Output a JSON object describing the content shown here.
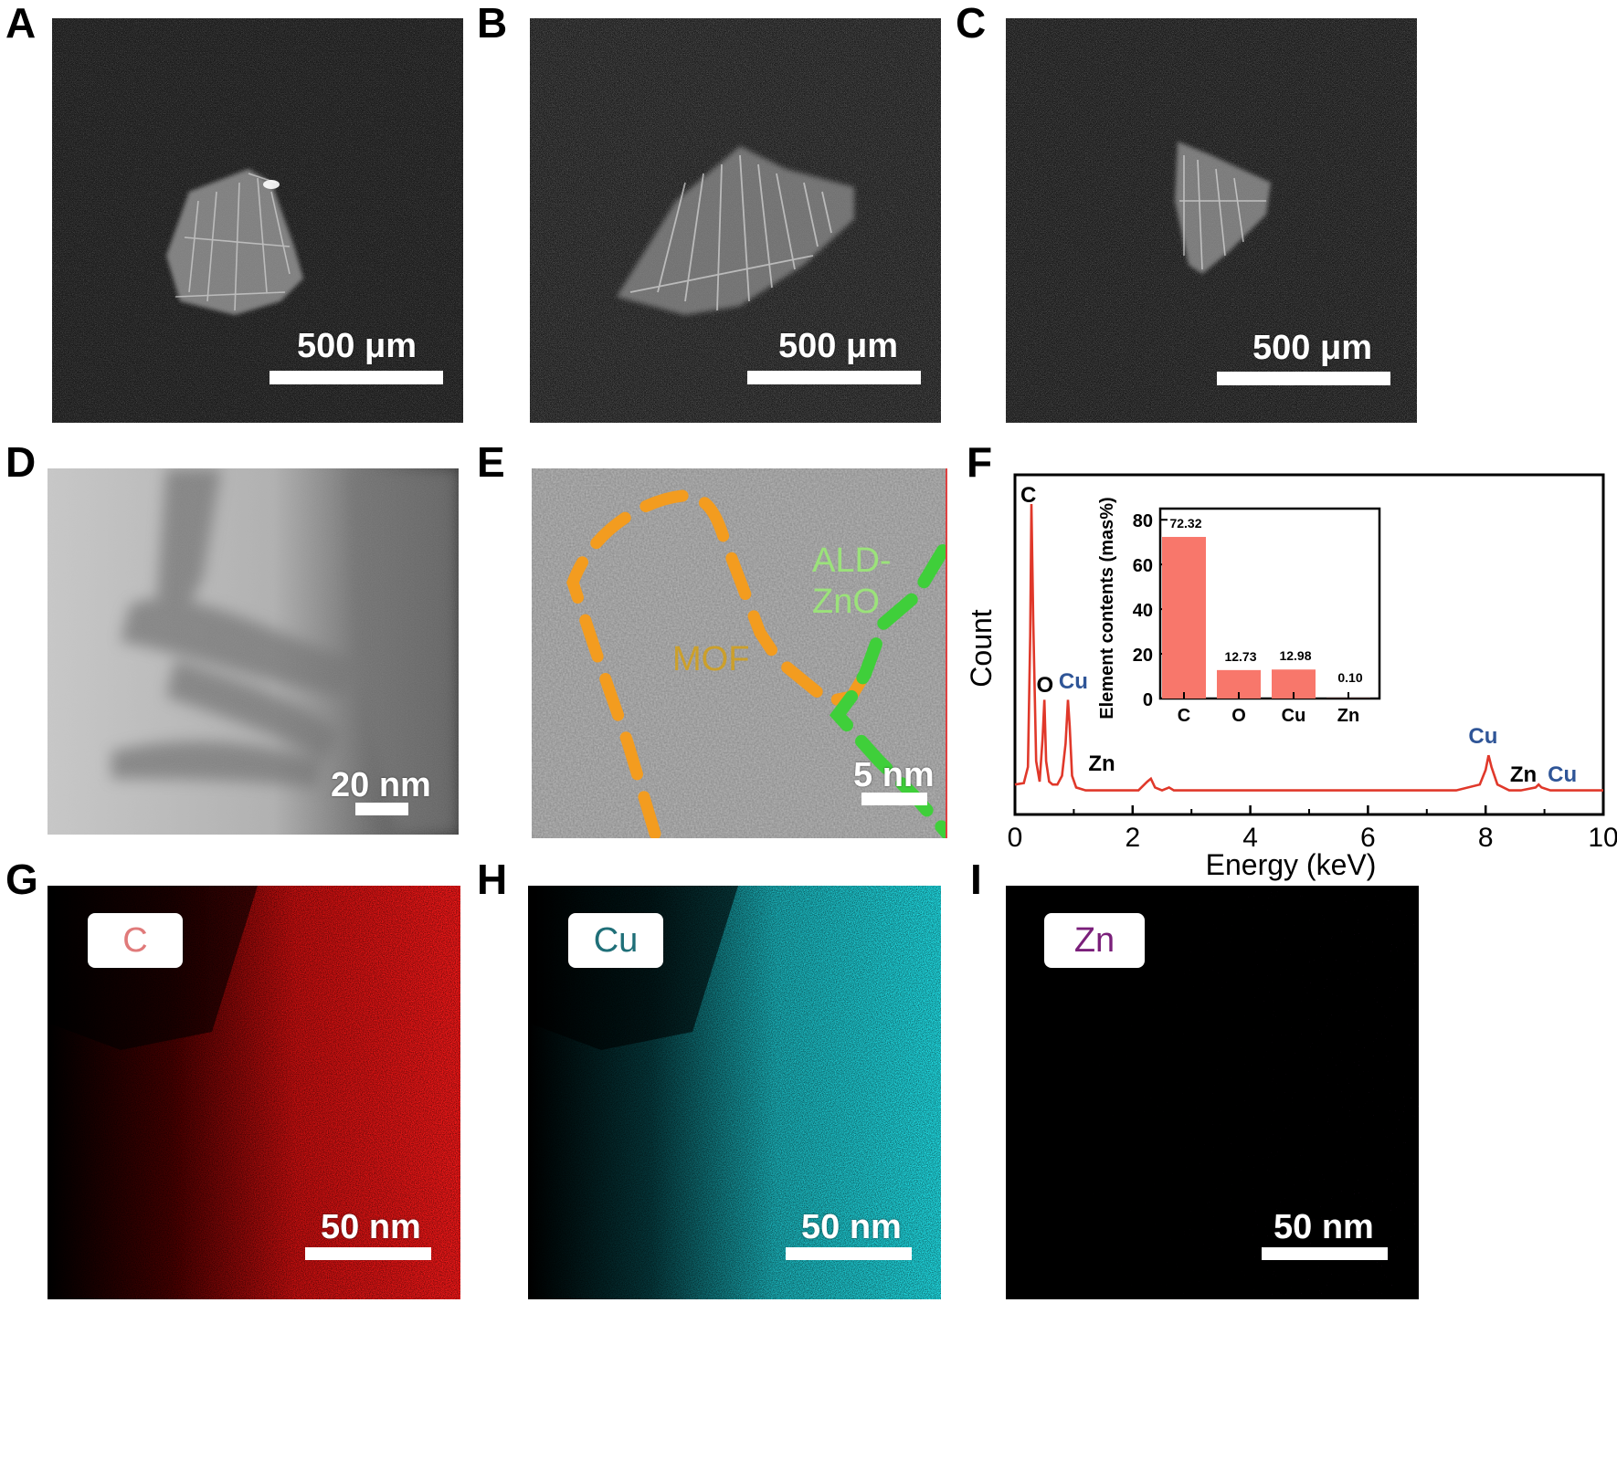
{
  "panel_letters": [
    "A",
    "B",
    "C",
    "D",
    "E",
    "F",
    "G",
    "H",
    "I"
  ],
  "panels": {
    "A": {
      "scale_label": "500 μm"
    },
    "B": {
      "scale_label": "500 μm"
    },
    "C": {
      "scale_label": "500 μm"
    },
    "D": {
      "scale_label": "20 nm"
    },
    "E": {
      "scale_label": "5 nm",
      "region_labels": {
        "mof": "MOF",
        "ald_line1": "ALD-",
        "ald_line2": "ZnO"
      },
      "colors": {
        "mof": "#f39c1f",
        "ald": "#3fcf3a"
      }
    },
    "G": {
      "element": "C",
      "scale_label": "50 nm",
      "color": "#ff1a1a",
      "text_color": "#e07a7a"
    },
    "H": {
      "element": "Cu",
      "scale_label": "50 nm",
      "color": "#22e0e8",
      "text_color": "#1f6f78"
    },
    "I": {
      "element": "Zn",
      "scale_label": "50 nm",
      "color": "#e020e0",
      "text_color": "#7a1f7a"
    }
  },
  "chart_data": [
    {
      "type": "line",
      "panel": "F",
      "xlabel": "Energy (keV)",
      "ylabel": "Count",
      "xlim": [
        0,
        10
      ],
      "xticks": [
        "0",
        "2",
        "4",
        "6",
        "8",
        "10"
      ],
      "series": [
        {
          "x": [
            0.0,
            0.15,
            0.22,
            0.26,
            0.28,
            0.31,
            0.36,
            0.42,
            0.47,
            0.5,
            0.53,
            0.58,
            0.64,
            0.72,
            0.8,
            0.86,
            0.9,
            0.93,
            0.97,
            1.04,
            1.2,
            1.6,
            2.1,
            2.25,
            2.31,
            2.38,
            2.5,
            2.62,
            2.7,
            3.0,
            3.7,
            5.0,
            6.5,
            7.5,
            7.9,
            8.0,
            8.05,
            8.1,
            8.2,
            8.4,
            8.6,
            8.85,
            8.9,
            8.95,
            9.1,
            9.5,
            10.0
          ],
          "y": [
            0.04,
            0.045,
            0.1,
            0.55,
            1.0,
            0.6,
            0.12,
            0.05,
            0.2,
            0.33,
            0.12,
            0.05,
            0.04,
            0.04,
            0.07,
            0.18,
            0.33,
            0.24,
            0.07,
            0.03,
            0.02,
            0.02,
            0.02,
            0.05,
            0.06,
            0.03,
            0.02,
            0.03,
            0.02,
            0.02,
            0.02,
            0.02,
            0.02,
            0.02,
            0.04,
            0.09,
            0.14,
            0.1,
            0.04,
            0.02,
            0.02,
            0.03,
            0.04,
            0.03,
            0.02,
            0.02,
            0.02
          ]
        }
      ],
      "peak_labels": [
        {
          "text": "C",
          "x": 0.28,
          "color": "#000000"
        },
        {
          "text": "O",
          "x": 0.52,
          "color": "#000000"
        },
        {
          "text": "Cu",
          "x": 0.93,
          "color": "#2f5597"
        },
        {
          "text": "Zn",
          "x": 1.0,
          "color": "#000000"
        },
        {
          "text": "Cu",
          "x": 8.05,
          "color": "#2f5597"
        },
        {
          "text": "Zn",
          "x": 8.6,
          "color": "#000000"
        },
        {
          "text": "Cu",
          "x": 8.9,
          "color": "#2f5597"
        }
      ],
      "line_color": "#e0382a"
    },
    {
      "type": "bar",
      "panel": "F-inset",
      "categories": [
        "C",
        "O",
        "Cu",
        "Zn"
      ],
      "values": [
        72.32,
        12.73,
        12.98,
        0.1
      ],
      "data_labels": [
        "72.32",
        "12.73",
        "12.98",
        "0.10"
      ],
      "ylabel": "Element contents (mas%)",
      "ylim": [
        0,
        85
      ],
      "yticks": [
        "0",
        "20",
        "40",
        "60",
        "80"
      ],
      "bar_color": "#f8776b"
    }
  ]
}
